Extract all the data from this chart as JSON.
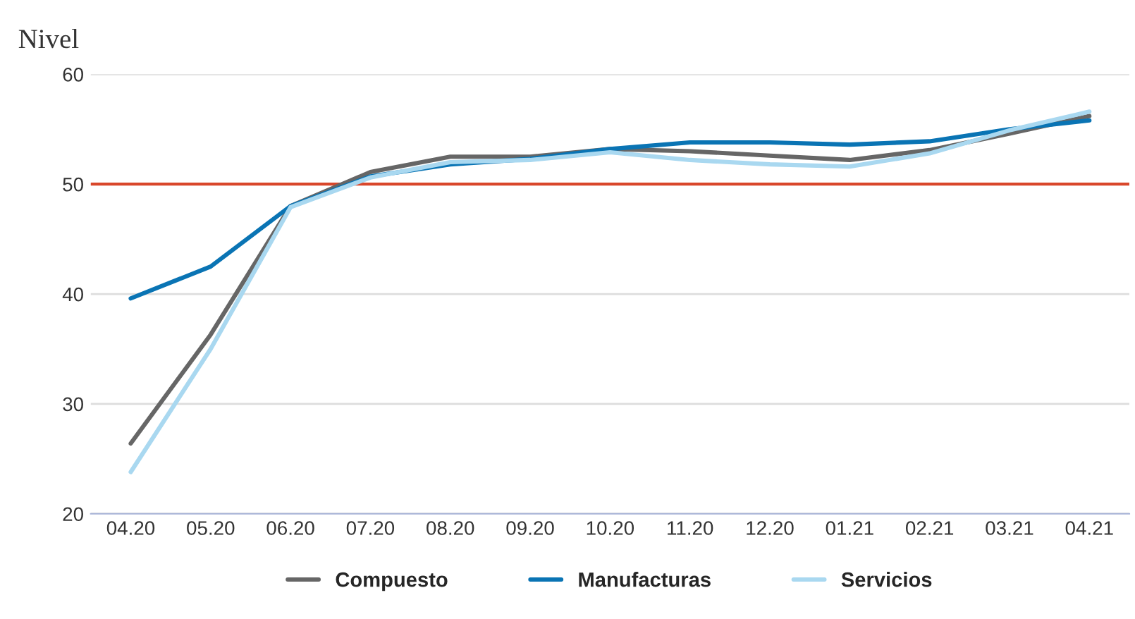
{
  "chart_data": {
    "type": "line",
    "ylabel": "Nivel",
    "categories": [
      "04.20",
      "05.20",
      "06.20",
      "07.20",
      "08.20",
      "09.20",
      "10.20",
      "11.20",
      "12.20",
      "01.21",
      "02.21",
      "03.21",
      "04.21"
    ],
    "series": [
      {
        "name": "Compuesto",
        "color": "#666666",
        "values": [
          26.4,
          36.3,
          48.0,
          51.1,
          52.5,
          52.5,
          53.2,
          53.0,
          52.6,
          52.2,
          53.1,
          54.6,
          56.2
        ]
      },
      {
        "name": "Manufacturas",
        "color": "#0a74b4",
        "values": [
          39.6,
          42.5,
          48.0,
          50.7,
          51.8,
          52.3,
          53.2,
          53.8,
          53.8,
          53.6,
          53.9,
          55.0,
          55.8
        ]
      },
      {
        "name": "Servicios",
        "color": "#a9d8f0",
        "values": [
          23.8,
          35.0,
          47.9,
          50.6,
          52.0,
          52.2,
          52.9,
          52.2,
          51.8,
          51.6,
          52.8,
          54.9,
          56.6
        ]
      }
    ],
    "ylim": [
      20,
      60
    ],
    "yticks": [
      20,
      30,
      40,
      50,
      60
    ],
    "grid": "y",
    "legend": "bottom",
    "ref_lines": [
      {
        "axis": "y",
        "value": 50,
        "color": "#d9472b"
      }
    ]
  }
}
